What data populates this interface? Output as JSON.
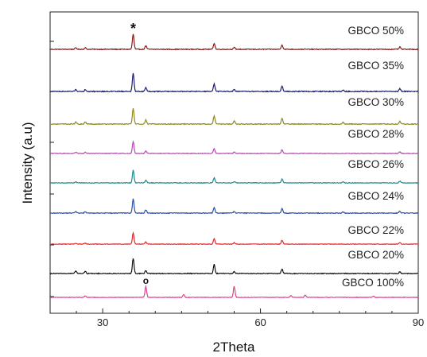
{
  "chart_data": {
    "type": "line",
    "title": "",
    "xlabel": "2Theta",
    "ylabel": "Intensity (a.u)",
    "xlim": [
      20,
      90
    ],
    "xticks": [
      30,
      60,
      90
    ],
    "y_ticks_labeled": false,
    "grid": false,
    "legend": "inline labels at right of each trace",
    "series": [
      {
        "name": "GBCO 50%",
        "color": "#8b1c1c",
        "peaks": [
          [
            24.9,
            0.1
          ],
          [
            26.7,
            0.1
          ],
          [
            35.8,
            1.0
          ],
          [
            38.2,
            0.25
          ],
          [
            51.2,
            0.4
          ],
          [
            55.0,
            0.12
          ],
          [
            64.1,
            0.3
          ],
          [
            86.5,
            0.15
          ]
        ]
      },
      {
        "name": "GBCO 35%",
        "color": "#1f1f6e",
        "peaks": [
          [
            24.9,
            0.1
          ],
          [
            26.7,
            0.1
          ],
          [
            35.8,
            1.0
          ],
          [
            38.2,
            0.22
          ],
          [
            51.2,
            0.4
          ],
          [
            55.0,
            0.1
          ],
          [
            64.1,
            0.3
          ],
          [
            75.7,
            0.08
          ],
          [
            86.5,
            0.14
          ]
        ]
      },
      {
        "name": "GBCO 30%",
        "color": "#8e8a1d",
        "peaks": [
          [
            24.9,
            0.12
          ],
          [
            26.7,
            0.12
          ],
          [
            35.8,
            1.0
          ],
          [
            38.2,
            0.25
          ],
          [
            51.2,
            0.5
          ],
          [
            55.0,
            0.2
          ],
          [
            64.1,
            0.35
          ],
          [
            75.7,
            0.1
          ],
          [
            86.5,
            0.16
          ]
        ]
      },
      {
        "name": "GBCO 28%",
        "color": "#b64ab3",
        "peaks": [
          [
            24.9,
            0.1
          ],
          [
            26.7,
            0.1
          ],
          [
            35.8,
            1.0
          ],
          [
            38.2,
            0.22
          ],
          [
            51.2,
            0.4
          ],
          [
            55.0,
            0.12
          ],
          [
            64.1,
            0.3
          ],
          [
            86.5,
            0.14
          ]
        ]
      },
      {
        "name": "GBCO 26%",
        "color": "#1f8a8a",
        "peaks": [
          [
            24.9,
            0.08
          ],
          [
            35.8,
            1.0
          ],
          [
            38.2,
            0.2
          ],
          [
            51.2,
            0.4
          ],
          [
            55.0,
            0.1
          ],
          [
            64.1,
            0.3
          ],
          [
            75.7,
            0.08
          ],
          [
            86.5,
            0.14
          ]
        ]
      },
      {
        "name": "GBCO 24%",
        "color": "#2a4fa8",
        "peaks": [
          [
            24.9,
            0.1
          ],
          [
            26.7,
            0.1
          ],
          [
            35.8,
            1.0
          ],
          [
            38.2,
            0.22
          ],
          [
            51.2,
            0.4
          ],
          [
            55.0,
            0.12
          ],
          [
            64.1,
            0.3
          ],
          [
            75.7,
            0.08
          ],
          [
            86.5,
            0.14
          ]
        ]
      },
      {
        "name": "GBCO 22%",
        "color": "#e02a2a",
        "peaks": [
          [
            24.9,
            0.08
          ],
          [
            26.7,
            0.08
          ],
          [
            35.8,
            1.0
          ],
          [
            38.2,
            0.2
          ],
          [
            51.2,
            0.5
          ],
          [
            55.0,
            0.12
          ],
          [
            64.1,
            0.35
          ],
          [
            86.5,
            0.15
          ]
        ]
      },
      {
        "name": "GBCO 20%",
        "color": "#111111",
        "peaks": [
          [
            24.9,
            0.18
          ],
          [
            26.7,
            0.15
          ],
          [
            35.8,
            1.0
          ],
          [
            38.2,
            0.2
          ],
          [
            51.2,
            0.6
          ],
          [
            55.0,
            0.12
          ],
          [
            64.1,
            0.3
          ],
          [
            86.5,
            0.12
          ]
        ]
      },
      {
        "name": "GBCO 100%",
        "color": "#e0448a",
        "peaks": [
          [
            26.7,
            0.15
          ],
          [
            38.2,
            1.0
          ],
          [
            45.4,
            0.25
          ],
          [
            55.0,
            1.0
          ],
          [
            65.8,
            0.15
          ],
          [
            68.5,
            0.2
          ],
          [
            81.5,
            0.1
          ]
        ]
      }
    ],
    "annotations": [
      {
        "text": "*",
        "series": "GBCO 50%",
        "x": 35.8
      },
      {
        "text": "o",
        "series": "GBCO 100%",
        "x": 38.2
      }
    ]
  }
}
